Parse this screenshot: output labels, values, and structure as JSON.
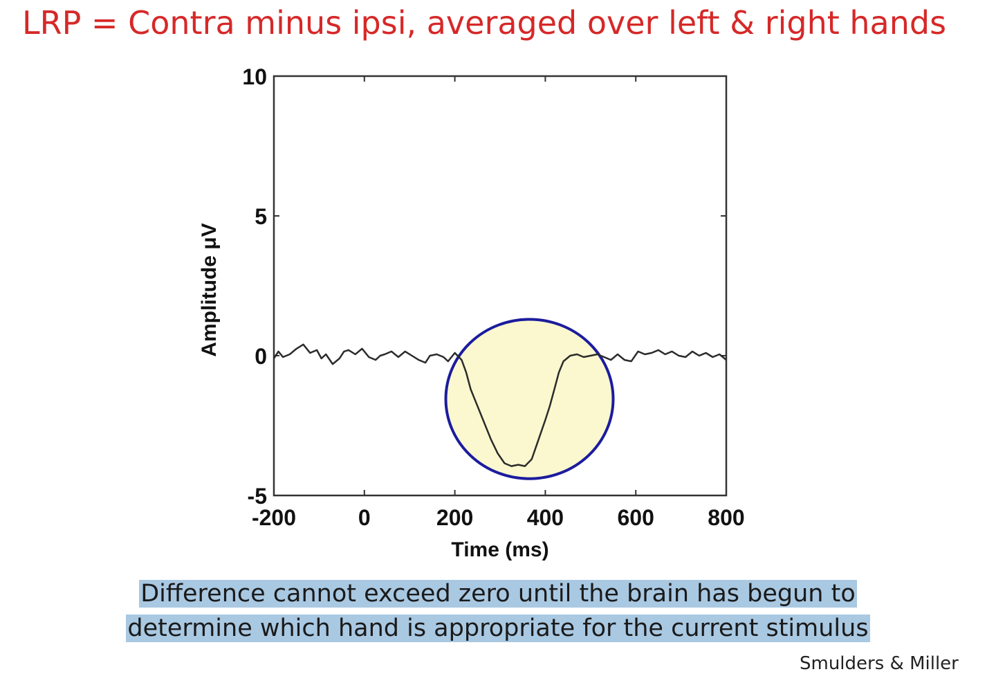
{
  "slide": {
    "title": "LRP = Contra minus ipsi, averaged over left & right hands",
    "caption_line_1": "Difference cannot exceed zero until the brain has begun to",
    "caption_line_2": "determine which hand is appropriate for the current stimulus",
    "citation": "Smulders & Miller"
  },
  "colors": {
    "title": "#d62828",
    "trace": "#2b2b2b",
    "circle_fill": "#fbf8cf",
    "circle_stroke": "#1c1c9e",
    "caption_highlight": "#a9c8e2"
  },
  "chart_data": {
    "type": "line",
    "xlabel": "Time (ms)",
    "ylabel": "Amplitude μV",
    "xlim": [
      -200,
      800
    ],
    "ylim": [
      -5,
      10
    ],
    "xticks": [
      -200,
      0,
      200,
      400,
      600,
      800
    ],
    "yticks": [
      -5,
      0,
      5,
      10
    ],
    "grid": false,
    "legend": "none",
    "series": [
      {
        "x": [
          -200,
          -190,
          -180,
          -165,
          -150,
          -135,
          -120,
          -105,
          -95,
          -85,
          -70,
          -55,
          -45,
          -35,
          -20,
          -5,
          10,
          25,
          35,
          45,
          60,
          75,
          90,
          105,
          120,
          135,
          145,
          160,
          175,
          185,
          200,
          215,
          225,
          235,
          250,
          265,
          280,
          295,
          310,
          325,
          340,
          355,
          370,
          385,
          400,
          410,
          420,
          430,
          440,
          455,
          470,
          485,
          500,
          515,
          530,
          545,
          560,
          575,
          590,
          605,
          620,
          635,
          650,
          665,
          680,
          695,
          710,
          725,
          740,
          755,
          770,
          785,
          800
        ],
        "y": [
          -0.1,
          0.15,
          -0.05,
          0.05,
          0.25,
          0.4,
          0.1,
          0.2,
          -0.1,
          0.05,
          -0.3,
          -0.1,
          0.15,
          0.2,
          0.05,
          0.25,
          -0.05,
          -0.15,
          0.0,
          0.05,
          0.15,
          -0.05,
          0.15,
          0.0,
          -0.15,
          -0.25,
          0.0,
          0.05,
          -0.05,
          -0.2,
          0.1,
          -0.15,
          -0.6,
          -1.2,
          -1.8,
          -2.4,
          -3.0,
          -3.5,
          -3.85,
          -3.95,
          -3.9,
          -3.95,
          -3.7,
          -3.0,
          -2.3,
          -1.8,
          -1.2,
          -0.6,
          -0.2,
          0.0,
          0.05,
          -0.05,
          0.0,
          0.05,
          -0.05,
          -0.15,
          0.05,
          -0.15,
          -0.2,
          0.15,
          0.05,
          0.1,
          0.2,
          0.05,
          0.15,
          0.0,
          -0.05,
          0.15,
          0.0,
          0.1,
          -0.05,
          0.05,
          -0.15
        ]
      }
    ],
    "annotations": [
      {
        "type": "circle",
        "center_x": 365,
        "center_y": -1.55,
        "radius_x": 185,
        "radius_y": 2.85
      }
    ]
  }
}
